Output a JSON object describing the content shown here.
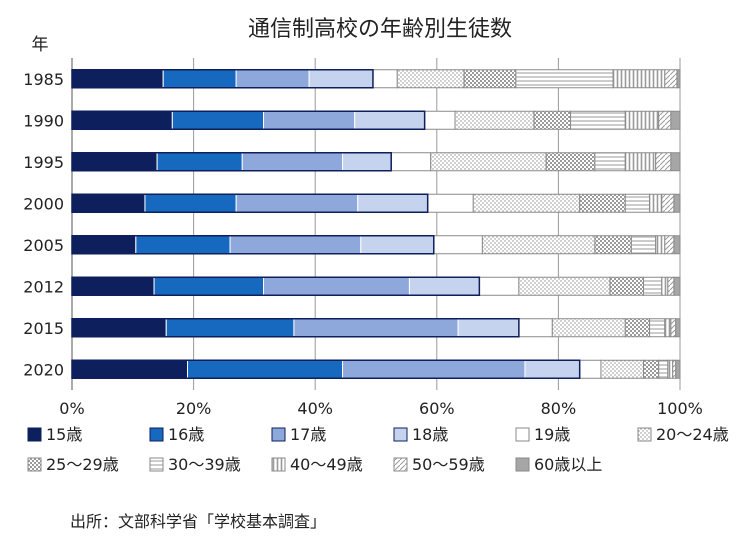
{
  "chart_data": {
    "type": "bar",
    "orientation": "horizontal",
    "stacked": true,
    "title": "通信制高校の年齢別生徒数",
    "ylabel": "年",
    "categories": [
      "1985",
      "1990",
      "1995",
      "2000",
      "2005",
      "2012",
      "2015",
      "2020"
    ],
    "xlim": [
      0,
      100
    ],
    "x_ticks": [
      "0%",
      "20%",
      "40%",
      "60%",
      "80%",
      "100%"
    ],
    "grid": true,
    "legend_position": "bottom",
    "colors": {
      "15歳": "#0d1f5c",
      "16歳": "#1769c0",
      "17歳": "#8ea8dc",
      "18歳": "#c5d3ee",
      "19歳": "#ffffff",
      "20～24歳": "#d8d8d8",
      "25～29歳": "#d8d8d8",
      "30～39歳": "#ffffff",
      "40～49歳": "#ffffff",
      "50～59歳": "#ffffff",
      "60歳以上": "#a6a6a6"
    },
    "series": [
      {
        "name": "15歳",
        "values": [
          15.0,
          16.5,
          14.0,
          12.0,
          10.5,
          13.5,
          15.5,
          19.0
        ]
      },
      {
        "name": "16歳",
        "values": [
          12.0,
          15.0,
          14.0,
          15.0,
          15.5,
          18.0,
          21.0,
          25.5
        ]
      },
      {
        "name": "17歳",
        "values": [
          12.0,
          15.0,
          16.5,
          20.0,
          21.5,
          24.0,
          27.0,
          30.0
        ]
      },
      {
        "name": "18歳",
        "values": [
          10.5,
          11.5,
          8.0,
          11.5,
          12.0,
          11.5,
          10.0,
          9.0
        ]
      },
      {
        "name": "19歳",
        "values": [
          4.0,
          5.0,
          6.5,
          7.5,
          8.0,
          6.5,
          5.5,
          3.5
        ]
      },
      {
        "name": "20～24歳",
        "values": [
          11.0,
          13.0,
          19.0,
          17.5,
          18.5,
          15.0,
          12.0,
          7.0
        ]
      },
      {
        "name": "25～29歳",
        "values": [
          8.5,
          6.0,
          8.0,
          7.5,
          6.0,
          5.5,
          4.0,
          2.5
        ]
      },
      {
        "name": "30～39歳",
        "values": [
          16.0,
          9.0,
          5.0,
          4.0,
          4.0,
          3.0,
          2.5,
          1.5
        ]
      },
      {
        "name": "40～49歳",
        "values": [
          8.5,
          5.5,
          5.0,
          2.0,
          1.5,
          1.0,
          1.0,
          0.8
        ]
      },
      {
        "name": "50～59歳",
        "values": [
          2.0,
          2.0,
          2.5,
          2.0,
          1.5,
          1.0,
          0.8,
          0.5
        ]
      },
      {
        "name": "60歳以上",
        "values": [
          0.5,
          1.5,
          1.5,
          1.0,
          1.0,
          1.0,
          0.7,
          0.7
        ]
      }
    ]
  },
  "footer": {
    "source": "出所：文部科学省「学校基本調査」"
  }
}
